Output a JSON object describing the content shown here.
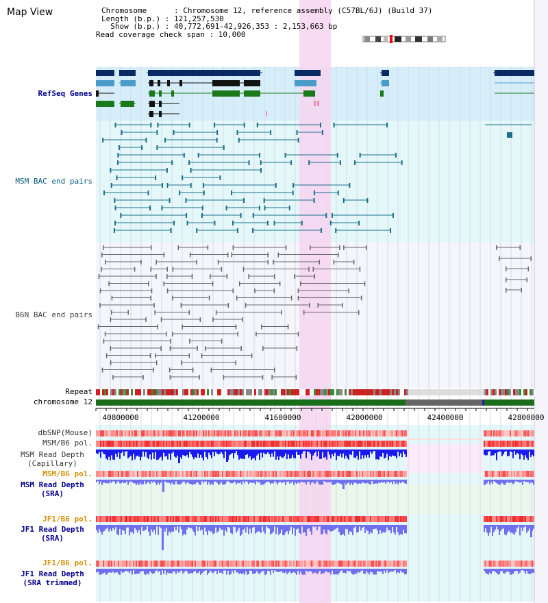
{
  "title": "Map View",
  "info": {
    "chromosome": "Chromosome      : Chromosome 12, reference assembly (C57BL/6J) (Build 37)",
    "length": "Length (b.p.) : 121,257,530",
    "show": "  Show (b.p.) : 40,772,691-42,926,353 : 2,153,663 bp",
    "coverage": "Read coverage check span : 10,000"
  },
  "tracks": {
    "refseq": "RefSeq Genes",
    "msm_bac": "MSM BAC end pairs",
    "b6n_bac": "B6N BAC end pairs",
    "repeat": "Repeat",
    "chrom": "chromosome 12",
    "dbsnp": "dbSNP(Mouse)",
    "msm_b6_pol": "MSM/B6 pol.",
    "msm_depth_cap": "MSM Read Depth\n(Capillary)",
    "msm_b6_pol_sra": "MSM/B6 pol.",
    "msm_depth_sra": "MSM Read Depth\n(SRA)",
    "jf1_b6_pol": "JF1/B6 pol.",
    "jf1_depth_sra": "JF1 Read Depth\n(SRA)",
    "jf1_b6_pol_trim": "JF1/B6 pol.",
    "jf1_depth_trim": "JF1 Read Depth\n(SRA trimmed)"
  },
  "axis_ticks": [
    "40800000",
    "41200000",
    "41600000",
    "42000000",
    "42400000",
    "42800000"
  ],
  "colors": {
    "gene_dark": "#0a2a66",
    "gene_mid": "#4b9bc9",
    "gene_green": "#1a7a1a",
    "msm_bac": "#1a6f8a",
    "b6n_bac": "#666666",
    "highlight": "#f6d5f0",
    "label_blue": "#00008b",
    "label_teal": "#005a7a",
    "label_orange": "#d4900a",
    "depth_blue": "#1a1aee",
    "depth_light": "#7070ee"
  }
}
